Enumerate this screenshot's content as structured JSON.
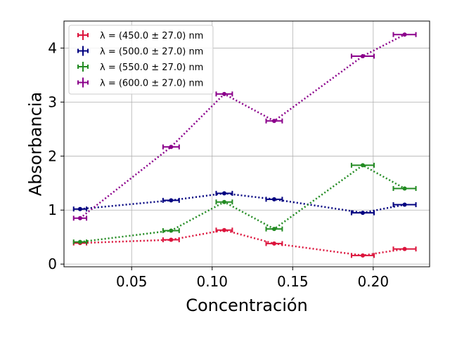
{
  "chart_data": {
    "type": "line",
    "title": "",
    "xlabel": "Concentración",
    "ylabel": "Absorbancia",
    "xlim": [
      0.008,
      0.235
    ],
    "ylim": [
      -0.05,
      4.5
    ],
    "xticks": [
      0.05,
      0.1,
      0.15,
      0.2
    ],
    "xtick_labels": [
      "0.05",
      "0.10",
      "0.15",
      "0.20"
    ],
    "yticks": [
      0,
      1,
      2,
      3,
      4
    ],
    "ytick_labels": [
      "0",
      "1",
      "2",
      "3",
      "4"
    ],
    "grid": true,
    "legend_position": "top-left",
    "line_style": "dotted",
    "series": [
      {
        "name": "λ = (450.0 ± 27.0) nm",
        "color": "#DC143C",
        "x": [
          0.018,
          0.0745,
          0.1075,
          0.1385,
          0.1935,
          0.2195
        ],
        "y": [
          0.39,
          0.45,
          0.63,
          0.38,
          0.16,
          0.28
        ],
        "xerr": [
          0.004,
          0.005,
          0.005,
          0.005,
          0.007,
          0.007
        ]
      },
      {
        "name": "λ = (500.0 ± 27.0) nm",
        "color": "#000080",
        "x": [
          0.018,
          0.0745,
          0.1075,
          0.1385,
          0.1935,
          0.2195
        ],
        "y": [
          1.02,
          1.18,
          1.31,
          1.2,
          0.95,
          1.1
        ],
        "xerr": [
          0.004,
          0.005,
          0.005,
          0.005,
          0.007,
          0.007
        ]
      },
      {
        "name": "λ = (550.0 ± 27.0) nm",
        "color": "#228B22",
        "x": [
          0.018,
          0.0745,
          0.1075,
          0.1385,
          0.1935,
          0.2195
        ],
        "y": [
          0.41,
          0.62,
          1.15,
          0.65,
          1.83,
          1.4
        ],
        "xerr": [
          0.004,
          0.005,
          0.005,
          0.005,
          0.007,
          0.007
        ]
      },
      {
        "name": "λ = (600.0 ± 27.0) nm",
        "color": "#8B008B",
        "x": [
          0.018,
          0.0745,
          0.1075,
          0.1385,
          0.1935,
          0.2195
        ],
        "y": [
          0.85,
          2.17,
          3.15,
          2.65,
          3.85,
          4.25
        ],
        "xerr": [
          0.004,
          0.005,
          0.005,
          0.005,
          0.007,
          0.007
        ]
      }
    ]
  }
}
